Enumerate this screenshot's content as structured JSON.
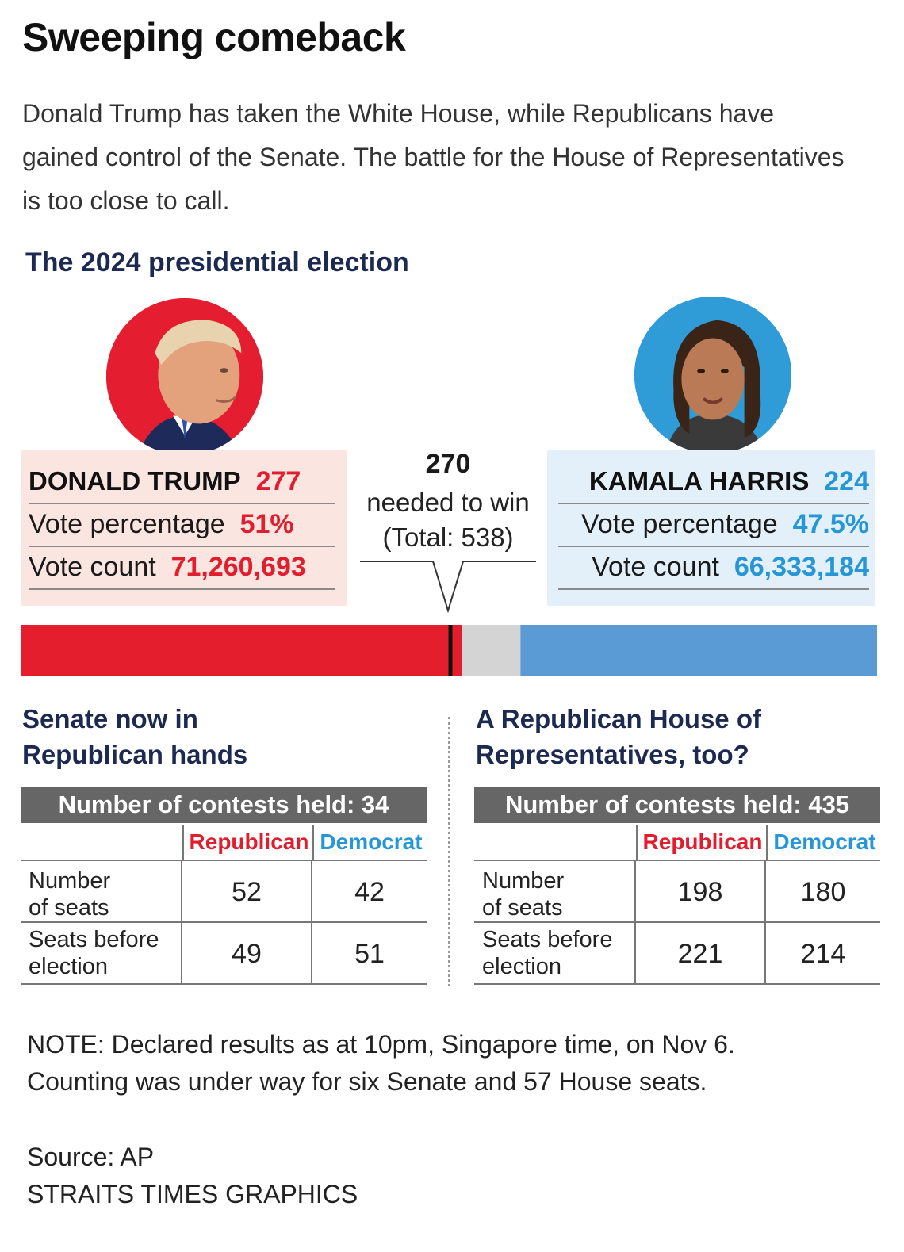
{
  "headline": "Sweeping comeback",
  "intro": "Donald Trump has taken the White House, while Republicans have gained control of the Senate. The battle for the House of Representatives is too close to call.",
  "section_title": "The 2024 presidential election",
  "candidates": {
    "trump": {
      "name": "DONALD TRUMP",
      "electoral_votes": "277",
      "vote_pct_label": "Vote percentage",
      "vote_pct": "51%",
      "vote_count_label": "Vote count",
      "vote_count": "71,260,693"
    },
    "harris": {
      "name": "KAMALA HARRIS",
      "electoral_votes": "224",
      "vote_pct_label": "Vote percentage",
      "vote_pct": "47.5%",
      "vote_count_label": "Vote count",
      "vote_count": "66,333,184"
    }
  },
  "win_threshold": {
    "number": "270",
    "line1": "needed to win",
    "line2": "(Total: 538)"
  },
  "colors": {
    "republican": "#e41e2c",
    "democrat": "#5b9bd5",
    "undecided": "#d4d4d4",
    "threshold": "#111111"
  },
  "chart_data": {
    "type": "bar",
    "orientation": "horizontal-stacked",
    "total": 538,
    "threshold": 270,
    "segments": [
      {
        "name": "DONALD TRUMP",
        "value": 277
      },
      {
        "name": "",
        "value": 37
      },
      {
        "name": "KAMALA HARRIS",
        "value": 224
      }
    ]
  },
  "senate": {
    "title_line1": "Senate now in",
    "title_line2": "Republican hands",
    "banner": "Number of contests held: 34",
    "col_rep": "Republican",
    "col_dem": "Democrat",
    "rows": [
      {
        "label1": "Number",
        "label2": "of seats",
        "rep": "52",
        "dem": "42"
      },
      {
        "label1": "Seats before",
        "label2": "election",
        "rep": "49",
        "dem": "51"
      }
    ]
  },
  "house": {
    "title_line1": "A Republican House of",
    "title_line2": "Representatives, too?",
    "banner": "Number of contests held: 435",
    "col_rep": "Republican",
    "col_dem": "Democrat",
    "rows": [
      {
        "label1": "Number",
        "label2": "of seats",
        "rep": "198",
        "dem": "180"
      },
      {
        "label1": "Seats before",
        "label2": "election",
        "rep": "221",
        "dem": "214"
      }
    ]
  },
  "note_line1": "NOTE: Declared results as at 10pm, Singapore time, on Nov 6.",
  "note_line2": "Counting was under way for six Senate and 57 House seats.",
  "source": "Source: AP",
  "credit": "STRAITS TIMES GRAPHICS"
}
